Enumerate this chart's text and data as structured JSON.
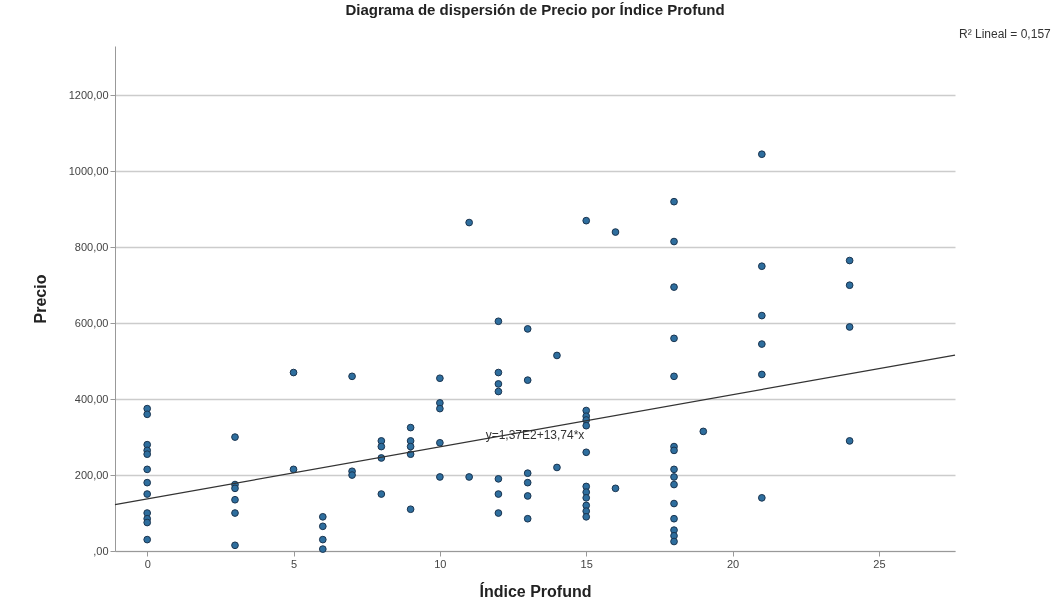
{
  "chart_data": {
    "type": "scatter",
    "title": "Diagrama de dispersión de Precio por Índice Profund",
    "xlabel": "Índice Profund",
    "ylabel": "Precio",
    "xlim": [
      -1.1,
      27.6
    ],
    "xticks": [
      0,
      5,
      10,
      15,
      20,
      25
    ],
    "ylim": [
      0,
      1330
    ],
    "yticks": [
      {
        "value": 0,
        "label": ",00"
      },
      {
        "value": 200,
        "label": "200,00"
      },
      {
        "value": 400,
        "label": "400,00"
      },
      {
        "value": 600,
        "label": "600,00"
      },
      {
        "value": 800,
        "label": "800,00"
      },
      {
        "value": 1000,
        "label": "1000,00"
      },
      {
        "value": 1200,
        "label": "1200,00"
      }
    ],
    "grid": "y",
    "marker": "circle",
    "series": [
      {
        "color": "#2e6e9e",
        "x": [
          0,
          0,
          0,
          0,
          0,
          0,
          0,
          0,
          0,
          0,
          0,
          0,
          3,
          3,
          3,
          3,
          3,
          3,
          5,
          5,
          6,
          6,
          6,
          6,
          7,
          7,
          7,
          8,
          8,
          8,
          8,
          9,
          9,
          9,
          9,
          9,
          10,
          10,
          10,
          10,
          10,
          11,
          11,
          12,
          12,
          12,
          12,
          12,
          12,
          12,
          13,
          13,
          13,
          13,
          13,
          13,
          14,
          14,
          15,
          15,
          15,
          15,
          15,
          15,
          15,
          15,
          15,
          15,
          15,
          15,
          16,
          16,
          18,
          18,
          18,
          18,
          18,
          18,
          18,
          18,
          18,
          18,
          18,
          18,
          18,
          18,
          18,
          19,
          21,
          21,
          21,
          21,
          21,
          21,
          24,
          24,
          24,
          24
        ],
        "values": [
          375,
          360,
          280,
          265,
          255,
          215,
          180,
          150,
          100,
          85,
          75,
          30,
          300,
          175,
          165,
          135,
          100,
          15,
          470,
          215,
          90,
          65,
          30,
          5,
          460,
          210,
          200,
          290,
          275,
          245,
          150,
          325,
          290,
          275,
          255,
          110,
          455,
          390,
          375,
          285,
          195,
          865,
          195,
          605,
          470,
          440,
          420,
          190,
          150,
          100,
          585,
          450,
          205,
          180,
          145,
          85,
          515,
          220,
          870,
          370,
          355,
          345,
          330,
          260,
          170,
          155,
          140,
          120,
          105,
          90,
          840,
          165,
          920,
          815,
          695,
          560,
          460,
          275,
          265,
          215,
          195,
          175,
          125,
          85,
          55,
          40,
          25,
          315,
          1045,
          750,
          620,
          545,
          465,
          140,
          765,
          700,
          590,
          290
        ]
      },
      {
        "type": "line",
        "marker": "none",
        "color": "#333333",
        "x": [
          -1.1,
          27.6
        ],
        "values": [
          122,
          516
        ]
      }
    ],
    "annotations": [
      "R² Lineal = 0,157",
      "y=1,37E2+13,74*x"
    ]
  }
}
